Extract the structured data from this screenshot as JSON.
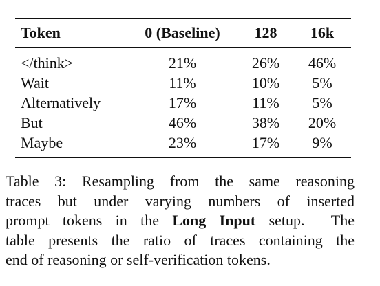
{
  "table": {
    "header": [
      "Token",
      "0 (Baseline)",
      "128",
      "16k"
    ],
    "rows": [
      [
        "</think>",
        "21%",
        "26%",
        "46%"
      ],
      [
        "Wait",
        "11%",
        "10%",
        "5%"
      ],
      [
        "Alternatively",
        "17%",
        "11%",
        "5%"
      ],
      [
        "But",
        "46%",
        "38%",
        "20%"
      ],
      [
        "Maybe",
        "23%",
        "17%",
        "9%"
      ]
    ]
  },
  "caption": {
    "lines": [
      [
        {
          "text": "Table 3: Resampling from the same reasoning"
        }
      ],
      [
        {
          "text": "traces but under varying numbers of inserted"
        }
      ],
      [
        {
          "text": "prompt tokens in the "
        },
        {
          "text": "Long Input",
          "bold": true
        },
        {
          "text": " setup.  The"
        }
      ],
      [
        {
          "text": "table presents the ratio of traces containing the"
        }
      ],
      [
        {
          "text": "end of reasoning or self-verification tokens."
        }
      ]
    ]
  }
}
